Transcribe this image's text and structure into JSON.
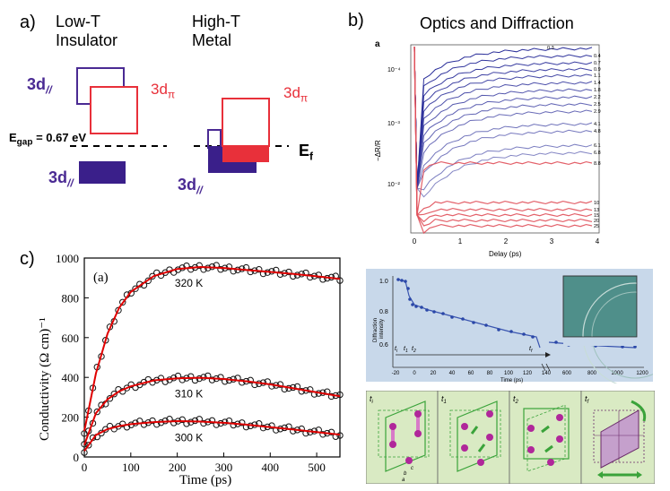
{
  "panel_a": {
    "letter": "a)",
    "insulator_title": [
      "Low-T",
      "Insulator"
    ],
    "metal_title": [
      "High-T",
      "Metal"
    ],
    "d_par": "3d",
    "d_par_sub": "//",
    "d_pi": "3d",
    "d_pi_sub": "π",
    "egap_main": "E",
    "egap_sub": "gap",
    "egap_value": " = 0.67 eV",
    "ef_main": "E",
    "ef_sub": "f",
    "colors": {
      "purple": "#4a2a93",
      "red": "#e8303a"
    }
  },
  "panel_b": {
    "letter": "b)",
    "title": "Optics and Diffraction",
    "optics": {
      "panel_tag": "a",
      "ylabel": "−ΔR/R",
      "xlabel": "Delay (ps)",
      "x_ticks": [
        "0",
        "1",
        "2",
        "3",
        "4"
      ],
      "y_ticks": [
        "10⁻²",
        "10⁻³",
        "10⁻⁴"
      ],
      "fluence_labels": [
        "0.3",
        "0.4",
        "0.7",
        "0.9",
        "1.1",
        "1.4",
        "1.8",
        "2.2",
        "2.5",
        "2.9",
        "4.1",
        "4.8",
        "6.1",
        "6.8",
        "8.8",
        "10",
        "13",
        "15",
        "20",
        "25"
      ],
      "colors": {
        "blue": "#2b2f9a",
        "red": "#e0505a"
      }
    },
    "diffraction": {
      "ylabel": [
        "Diffraction",
        "intensity"
      ],
      "xlabel": "Time (ps)",
      "y_ticks": [
        "1.0",
        "0.8",
        "0.6"
      ],
      "x_ticks_left": [
        "-20",
        "0",
        "20",
        "40",
        "60",
        "80",
        "100",
        "120",
        "140"
      ],
      "x_ticks_right": [
        "600",
        "800",
        "1000",
        "1200"
      ],
      "time_markers": [
        "t",
        "t",
        "t",
        "t"
      ],
      "time_marker_subs": [
        "i",
        "1",
        "2",
        "f"
      ],
      "bg_color": "#c8d8ea"
    },
    "snapshots": [
      {
        "label": "t",
        "sub": "i"
      },
      {
        "label": "t",
        "sub": "1"
      },
      {
        "label": "t",
        "sub": "2"
      },
      {
        "label": "t",
        "sub": "f"
      }
    ],
    "axis_labels": {
      "c": "c",
      "b": "b",
      "a": "a"
    }
  },
  "panel_c": {
    "letter": "c)",
    "inner_tag": "(a)"
  },
  "chart_data": {
    "type": "line",
    "title": "",
    "xlabel": "Time (ps)",
    "ylabel": "Conductivity (Ω cm)⁻¹",
    "xlim": [
      0,
      550
    ],
    "ylim": [
      0,
      1000
    ],
    "x_ticks": [
      0,
      100,
      200,
      300,
      400,
      500
    ],
    "y_ticks": [
      0,
      200,
      400,
      600,
      800,
      1000
    ],
    "series": [
      {
        "name": "320 K",
        "x": [
          0,
          25,
          50,
          75,
          100,
          150,
          200,
          250,
          300,
          350,
          400,
          450,
          500,
          550
        ],
        "values": [
          130,
          420,
          620,
          750,
          830,
          910,
          945,
          955,
          950,
          940,
          930,
          920,
          908,
          895
        ]
      },
      {
        "name": "310 K",
        "x": [
          0,
          25,
          50,
          75,
          100,
          150,
          200,
          250,
          300,
          350,
          400,
          450,
          500,
          550
        ],
        "values": [
          60,
          220,
          290,
          330,
          355,
          385,
          395,
          398,
          392,
          380,
          365,
          345,
          325,
          305
        ]
      },
      {
        "name": "300 K",
        "x": [
          0,
          25,
          50,
          75,
          100,
          150,
          200,
          250,
          300,
          350,
          400,
          450,
          500,
          550
        ],
        "values": [
          30,
          110,
          140,
          155,
          165,
          175,
          180,
          178,
          172,
          162,
          150,
          138,
          125,
          112
        ]
      }
    ],
    "colors": {
      "data": "#111111",
      "fit": "#e00000"
    }
  }
}
